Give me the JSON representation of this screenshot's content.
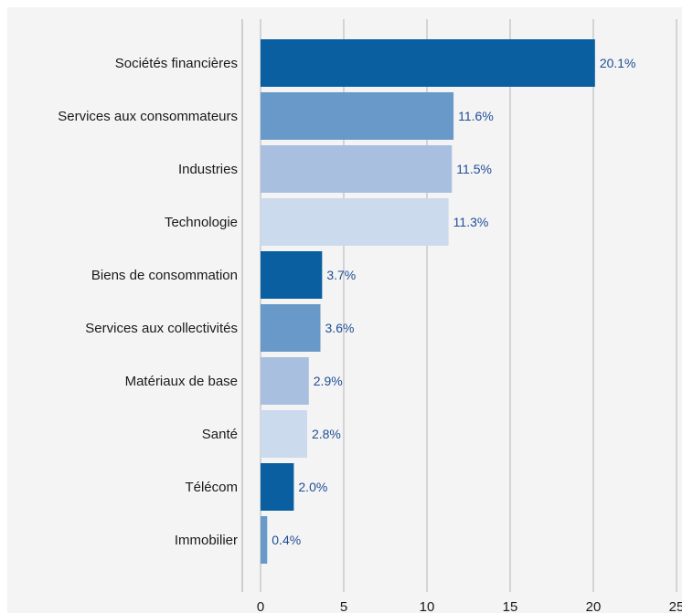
{
  "chart_data": {
    "type": "bar",
    "orientation": "horizontal",
    "categories": [
      "Sociétés financières",
      "Services aux consommateurs",
      "Industries",
      "Technologie",
      "Biens de consommation",
      "Services aux collectivités",
      "Matériaux de base",
      "Santé",
      "Télécom",
      "Immobilier"
    ],
    "values": [
      20.1,
      11.6,
      11.5,
      11.3,
      3.7,
      3.6,
      2.9,
      2.8,
      2.0,
      0.4
    ],
    "value_labels": [
      "20.1%",
      "11.6%",
      "11.5%",
      "11.3%",
      "3.7%",
      "3.6%",
      "2.9%",
      "2.8%",
      "2.0%",
      "0.4%"
    ],
    "xlim": [
      0,
      25
    ],
    "x_ticks": [
      0,
      5,
      10,
      15,
      20,
      25
    ],
    "x_tick_labels": [
      "0",
      "5",
      "10",
      "15",
      "20",
      "25"
    ],
    "grid": true,
    "title": "",
    "xlabel": "",
    "ylabel": "",
    "colors": {
      "palette": [
        "#0a5fa0",
        "#6899c8",
        "#a9bfe0",
        "#ccdaee"
      ],
      "value_label": "#1f4e96",
      "gridline": "#d4d4d4",
      "background": "#f4f4f4"
    }
  }
}
